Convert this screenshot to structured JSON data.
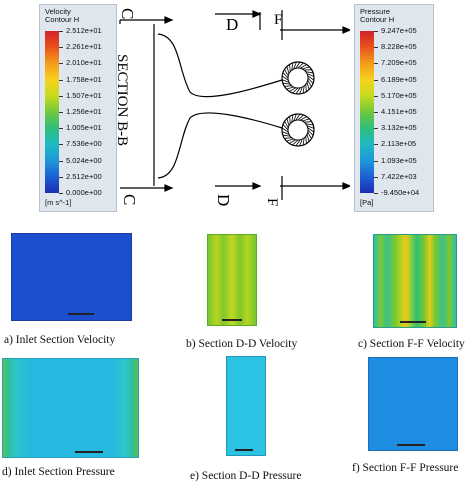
{
  "velocity_legend": {
    "title_line1": "Velocity",
    "title_line2": "Contour H",
    "values": [
      "2.512e+01",
      "2.261e+01",
      "2.010e+01",
      "1.758e+01",
      "1.507e+01",
      "1.256e+01",
      "1.005e+01",
      "7.536e+00",
      "5.024e+00",
      "2.512e+00",
      "0.000e+00"
    ],
    "unit": "[m s^-1]",
    "colors": [
      "#d2232a",
      "#e8521c",
      "#f39a1b",
      "#f6d21c",
      "#c5dc1e",
      "#6ec73b",
      "#2fbf7a",
      "#1eb9c1",
      "#1f97d9",
      "#1c5ed3",
      "#1b2fb4"
    ]
  },
  "pressure_legend": {
    "title_line1": "Pressure",
    "title_line2": "Contour H",
    "values": [
      "9.247e+05",
      "8.228e+05",
      "7.209e+05",
      "6.189e+05",
      "5.170e+05",
      "4.151e+05",
      "3.132e+05",
      "2.113e+05",
      "1.093e+05",
      "7.422e+03",
      "-9.450e+04"
    ],
    "unit": "[Pa]",
    "colors": [
      "#d2232a",
      "#e8521c",
      "#f39a1b",
      "#f6d21c",
      "#c5dc1e",
      "#6ec73b",
      "#2fbf7a",
      "#1eb9c1",
      "#1f97d9",
      "#1c5ed3",
      "#1b2fb4"
    ]
  },
  "diagram": {
    "section_label": "SECTION B-B",
    "c_top": "C",
    "c_bottom": "C",
    "d_top": "D",
    "d_bottom": "D",
    "f_top": "F",
    "f_bottom": "F"
  },
  "captions": {
    "a": "a)   Inlet Section Velocity",
    "b": "b)   Section D-D Velocity",
    "c": "c)   Section F-F Velocity",
    "d": "d)   Inlet Section Pressure",
    "e": "e)   Section D-D Pressure",
    "f": "f)    Section F-F Pressure"
  }
}
